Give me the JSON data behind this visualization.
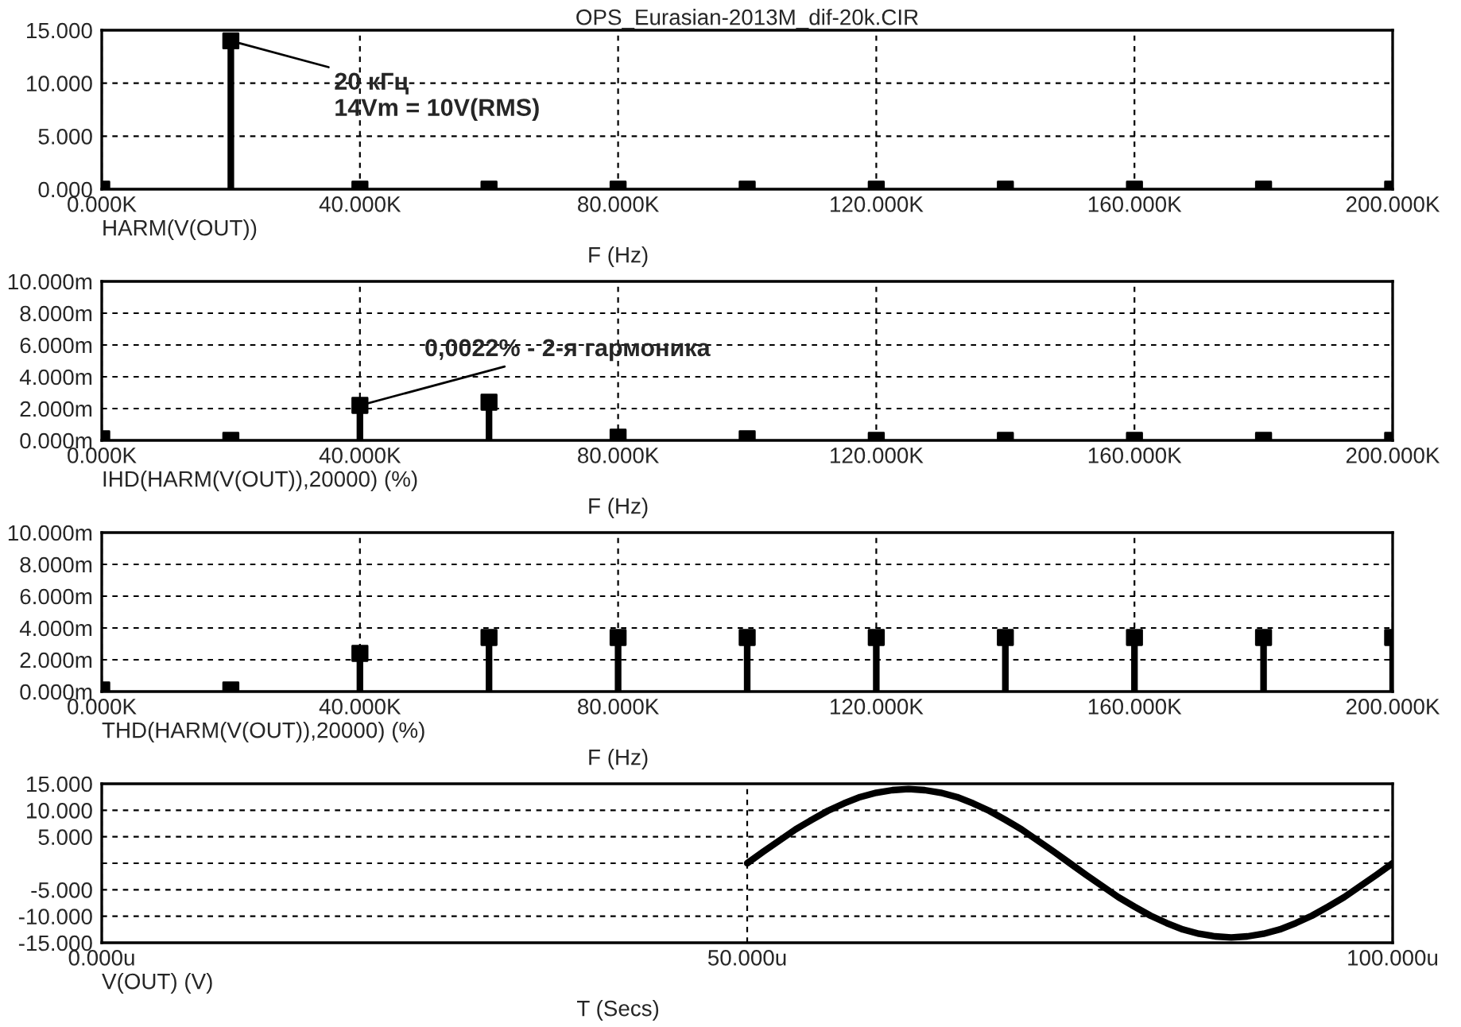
{
  "chart_data": [
    {
      "type": "lollipop",
      "title": "OPS_Eurasian-2013M_dif-20k.CIR",
      "xlabel": "F (Hz)",
      "marker": "square",
      "grid": true,
      "color": "#000000",
      "x": [
        0,
        20,
        40,
        60,
        80,
        100,
        120,
        140,
        160,
        180,
        200
      ],
      "values": [
        0,
        14,
        0,
        0,
        0,
        0,
        0,
        0,
        0,
        0,
        0
      ],
      "xlim": [
        0,
        200
      ],
      "xticks": [
        {
          "value": 0,
          "label": "0.000K"
        },
        {
          "value": 40,
          "label": "40.000K"
        },
        {
          "value": 80,
          "label": "80.000K"
        },
        {
          "value": 120,
          "label": "120.000K"
        },
        {
          "value": 160,
          "label": "160.000K"
        },
        {
          "value": 200,
          "label": "200.000K"
        }
      ],
      "ylim": [
        0,
        15
      ],
      "yticks": [
        {
          "value": 0,
          "label": "0.000"
        },
        {
          "value": 5,
          "label": "5.000"
        },
        {
          "value": 10,
          "label": "10.000"
        },
        {
          "value": 15,
          "label": "15.000"
        }
      ],
      "annotations": [
        "HARM(V(OUT))",
        {
          "text": "20 кГц\n14Vm = 10V(RMS)",
          "x": 20,
          "y": 14
        }
      ]
    },
    {
      "type": "lollipop",
      "xlabel": "F (Hz)",
      "marker": "square",
      "grid": true,
      "color": "#000000",
      "x": [
        0,
        20,
        40,
        60,
        80,
        100,
        120,
        140,
        160,
        180,
        200
      ],
      "values": [
        0.1,
        0,
        2.2,
        2.4,
        0.2,
        0.1,
        0,
        0,
        0,
        0,
        0
      ],
      "xlim": [
        0,
        200
      ],
      "xticks": [
        {
          "value": 0,
          "label": "0.000K"
        },
        {
          "value": 40,
          "label": "40.000K"
        },
        {
          "value": 80,
          "label": "80.000K"
        },
        {
          "value": 120,
          "label": "120.000K"
        },
        {
          "value": 160,
          "label": "160.000K"
        },
        {
          "value": 200,
          "label": "200.000K"
        }
      ],
      "ylim": [
        0,
        10
      ],
      "yticks": [
        {
          "value": 0,
          "label": "0.000m"
        },
        {
          "value": 2,
          "label": "2.000m"
        },
        {
          "value": 4,
          "label": "4.000m"
        },
        {
          "value": 6,
          "label": "6.000m"
        },
        {
          "value": 8,
          "label": "8.000m"
        },
        {
          "value": 10,
          "label": "10.000m"
        }
      ],
      "annotations": [
        "IHD(HARM(V(OUT)),20000) (%)",
        {
          "text": "0,0022% - 2-я гармоника",
          "x": 40,
          "y": 2.2
        }
      ]
    },
    {
      "type": "lollipop",
      "xlabel": "F (Hz)",
      "annotations": [
        "THD(HARM(V(OUT)),20000) (%)"
      ],
      "marker": "square",
      "grid": true,
      "color": "#000000",
      "x": [
        0,
        20,
        40,
        60,
        80,
        100,
        120,
        140,
        160,
        180,
        200
      ],
      "values": [
        0.1,
        0.1,
        2.4,
        3.4,
        3.4,
        3.4,
        3.4,
        3.4,
        3.4,
        3.4,
        3.4
      ],
      "xlim": [
        0,
        200
      ],
      "xticks": [
        {
          "value": 0,
          "label": "0.000K"
        },
        {
          "value": 40,
          "label": "40.000K"
        },
        {
          "value": 80,
          "label": "80.000K"
        },
        {
          "value": 120,
          "label": "120.000K"
        },
        {
          "value": 160,
          "label": "160.000K"
        },
        {
          "value": 200,
          "label": "200.000K"
        }
      ],
      "ylim": [
        0,
        10
      ],
      "yticks": [
        {
          "value": 0,
          "label": "0.000m"
        },
        {
          "value": 2,
          "label": "2.000m"
        },
        {
          "value": 4,
          "label": "4.000m"
        },
        {
          "value": 6,
          "label": "6.000m"
        },
        {
          "value": 8,
          "label": "8.000m"
        },
        {
          "value": 10,
          "label": "10.000m"
        }
      ]
    },
    {
      "type": "line",
      "xlabel": "T (Secs)",
      "annotations": [
        "V(OUT) (V)"
      ],
      "marker": "none",
      "line_style": "solid",
      "grid": true,
      "color": "#000000",
      "x": [
        50,
        51.25,
        52.5,
        53.75,
        55,
        56.25,
        57.5,
        58.75,
        60,
        61.25,
        62.5,
        63.75,
        65,
        66.25,
        67.5,
        68.75,
        70,
        71.25,
        72.5,
        73.75,
        75,
        76.25,
        77.5,
        78.75,
        80,
        81.25,
        82.5,
        83.75,
        85,
        86.25,
        87.5,
        88.75,
        90,
        91.25,
        92.5,
        93.75,
        95,
        96.25,
        97.5,
        98.75,
        100
      ],
      "values": [
        0,
        2.2,
        4.3,
        6.4,
        8.2,
        9.9,
        11.3,
        12.5,
        13.3,
        13.8,
        14,
        13.8,
        13.3,
        12.5,
        11.3,
        9.9,
        8.2,
        6.4,
        4.3,
        2.2,
        0,
        -2.2,
        -4.3,
        -6.4,
        -8.2,
        -9.9,
        -11.3,
        -12.5,
        -13.3,
        -13.8,
        -14,
        -13.8,
        -13.3,
        -12.5,
        -11.3,
        -9.9,
        -8.2,
        -6.4,
        -4.3,
        -2.2,
        0
      ],
      "xlim": [
        0,
        100
      ],
      "xticks": [
        {
          "value": 0,
          "label": "0.000u"
        },
        {
          "value": 50,
          "label": "50.000u"
        },
        {
          "value": 100,
          "label": "100.000u"
        }
      ],
      "ylim": [
        -15,
        15
      ],
      "yticks": [
        {
          "value": -15,
          "label": "-15.000"
        },
        {
          "value": -10,
          "label": "-10.000"
        },
        {
          "value": -5,
          "label": "-5.000"
        },
        {
          "value": 0,
          "label": null
        },
        {
          "value": 5,
          "label": "5.000"
        },
        {
          "value": 10,
          "label": "10.000"
        },
        {
          "value": 15,
          "label": "15.000"
        }
      ]
    }
  ]
}
